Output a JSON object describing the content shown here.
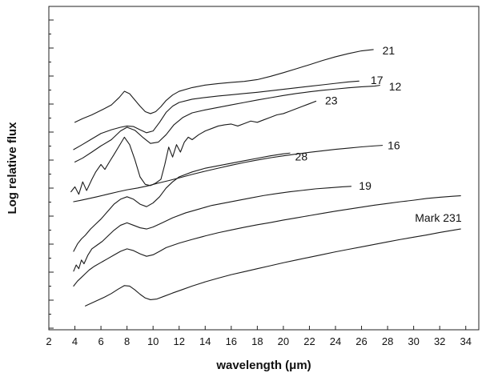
{
  "chart_data": {
    "type": "line",
    "xlabel": "wavelength (μm)",
    "ylabel": "Log relative flux",
    "xlim": [
      2,
      35
    ],
    "ylim": [
      0,
      100
    ],
    "x_ticks": [
      2,
      4,
      6,
      8,
      10,
      12,
      14,
      16,
      18,
      20,
      22,
      24,
      26,
      28,
      30,
      32,
      34
    ],
    "y_ticks_labeled": false,
    "y_scale": "log",
    "grid": false,
    "legend": "none",
    "line_color": "#1a1a1a",
    "series": [
      {
        "name": "21",
        "x": [
          4.0,
          4.6,
          5.3,
          6.0,
          6.8,
          7.4,
          7.8,
          8.2,
          8.6,
          9.0,
          9.4,
          9.8,
          10.2,
          10.6,
          11.0,
          11.5,
          12.0,
          13.0,
          14.0,
          15.0,
          16.0,
          17.0,
          18.0,
          19.0,
          20.0,
          21.0,
          22.0,
          23.0,
          24.0,
          25.0,
          26.0,
          26.9
        ],
        "y": [
          62.0,
          63.5,
          65.0,
          66.8,
          69.0,
          72.0,
          74.5,
          73.5,
          71.0,
          68.5,
          66.3,
          65.5,
          66.3,
          68.3,
          70.8,
          73.0,
          74.5,
          76.0,
          77.0,
          77.6,
          78.1,
          78.5,
          79.2,
          80.5,
          82.0,
          83.6,
          85.2,
          86.9,
          88.4,
          89.7,
          90.8,
          91.3
        ]
      },
      {
        "name": "17",
        "x": [
          3.9,
          4.5,
          5.2,
          6.0,
          6.8,
          7.5,
          8.0,
          8.5,
          9.0,
          9.5,
          10.0,
          10.5,
          11.0,
          11.5,
          12.0,
          13.0,
          14.0,
          15.0,
          16.0,
          17.0,
          18.0,
          19.0,
          20.0,
          21.0,
          22.0,
          23.0,
          24.0,
          25.0,
          25.8
        ],
        "y": [
          51.0,
          52.8,
          55.0,
          57.5,
          59.0,
          60.0,
          60.5,
          60.3,
          59.0,
          57.8,
          58.5,
          62.0,
          66.0,
          68.5,
          70.0,
          71.3,
          72.0,
          72.6,
          73.1,
          73.6,
          74.1,
          74.7,
          75.3,
          75.9,
          76.5,
          77.1,
          77.7,
          78.3,
          78.6
        ]
      },
      {
        "name": "12",
        "x": [
          4.0,
          4.6,
          5.3,
          6.0,
          6.8,
          7.5,
          8.0,
          8.6,
          9.2,
          9.8,
          10.4,
          11.0,
          11.6,
          12.3,
          13.0,
          14.0,
          15.0,
          16.0,
          17.0,
          18.0,
          19.0,
          20.0,
          21.0,
          22.0,
          23.0,
          24.0,
          25.0,
          26.0,
          27.0,
          27.4
        ],
        "y": [
          46.0,
          47.6,
          50.0,
          52.5,
          55.0,
          58.5,
          60.0,
          58.8,
          56.0,
          53.5,
          54.0,
          57.0,
          61.0,
          64.0,
          65.8,
          67.0,
          68.0,
          69.0,
          70.0,
          71.0,
          71.9,
          72.8,
          73.6,
          74.3,
          74.9,
          75.4,
          75.9,
          76.3,
          76.6,
          76.9
        ]
      },
      {
        "name": "23",
        "x": [
          3.7,
          4.0,
          4.3,
          4.6,
          4.9,
          5.3,
          5.6,
          6.0,
          6.3,
          6.7,
          7.0,
          7.4,
          7.8,
          8.2,
          8.6,
          9.0,
          9.4,
          9.8,
          10.2,
          10.6,
          10.9,
          11.2,
          11.5,
          11.8,
          12.1,
          12.4,
          12.7,
          13.0,
          13.5,
          14.0,
          14.5,
          15.0,
          15.5,
          16.0,
          16.5,
          17.0,
          17.5,
          18.0,
          18.5,
          19.0,
          19.5,
          20.0,
          20.5,
          21.0,
          21.5,
          22.0,
          22.5
        ],
        "y": [
          34.0,
          36.0,
          33.0,
          38.0,
          34.5,
          39.0,
          42.0,
          45.0,
          43.0,
          46.5,
          49.0,
          52.5,
          56.0,
          53.0,
          47.0,
          40.0,
          37.0,
          36.5,
          37.5,
          39.0,
          45.0,
          52.0,
          48.0,
          53.0,
          50.0,
          54.0,
          56.0,
          55.0,
          57.0,
          58.5,
          59.5,
          60.5,
          61.0,
          61.3,
          60.5,
          61.5,
          62.5,
          62.0,
          63.0,
          64.0,
          65.0,
          65.5,
          66.5,
          67.5,
          68.5,
          69.5,
          70.5
        ]
      },
      {
        "name": "16",
        "x": [
          3.9,
          4.4,
          5.0,
          5.7,
          6.5,
          7.3,
          8.0,
          8.8,
          9.6,
          10.4,
          11.2,
          12.0,
          13.0,
          14.0,
          15.0,
          16.0,
          17.0,
          18.0,
          19.0,
          20.0,
          21.0,
          22.0,
          23.0,
          24.0,
          25.0,
          26.0,
          27.0,
          27.6
        ],
        "y": [
          30.0,
          30.5,
          31.2,
          32.0,
          33.0,
          34.0,
          34.8,
          35.5,
          36.4,
          37.5,
          38.5,
          39.6,
          41.0,
          42.3,
          43.5,
          44.7,
          45.8,
          46.8,
          47.7,
          48.5,
          49.2,
          49.9,
          50.5,
          51.1,
          51.6,
          52.1,
          52.5,
          52.7
        ]
      },
      {
        "name": "28",
        "x": [
          3.9,
          4.2,
          4.5,
          4.8,
          5.2,
          5.6,
          6.0,
          6.5,
          7.0,
          7.5,
          8.0,
          8.5,
          9.0,
          9.5,
          10.0,
          10.5,
          11.0,
          11.5,
          12.0,
          13.0,
          14.0,
          15.0,
          16.0,
          17.0,
          18.0,
          19.0,
          20.0,
          20.5
        ],
        "y": [
          10.0,
          13.0,
          15.0,
          16.5,
          19.0,
          21.0,
          23.0,
          26.0,
          29.0,
          31.0,
          32.0,
          31.0,
          29.0,
          28.0,
          29.5,
          32.0,
          35.5,
          38.0,
          40.0,
          42.0,
          43.5,
          44.5,
          45.5,
          46.5,
          47.5,
          48.5,
          49.3,
          49.6
        ]
      },
      {
        "name": "19",
        "x": [
          3.9,
          4.1,
          4.3,
          4.5,
          4.7,
          5.0,
          5.3,
          5.7,
          6.1,
          6.5,
          7.0,
          7.5,
          8.0,
          8.5,
          9.0,
          9.5,
          10.0,
          10.7,
          11.5,
          12.5,
          13.5,
          14.5,
          15.5,
          16.5,
          17.5,
          18.5,
          19.5,
          20.5,
          21.5,
          22.5,
          23.5,
          24.5,
          25.2
        ],
        "y": [
          2.0,
          4.5,
          3.0,
          6.5,
          5.0,
          8.5,
          11.0,
          12.5,
          14.0,
          16.0,
          18.5,
          20.5,
          21.5,
          20.5,
          19.5,
          19.0,
          19.8,
          21.5,
          23.5,
          25.5,
          27.0,
          28.5,
          29.5,
          30.5,
          31.5,
          32.5,
          33.3,
          34.0,
          34.6,
          35.2,
          35.6,
          36.0,
          36.2
        ]
      },
      {
        "name": "Mark 231",
        "x": [
          3.9,
          4.2,
          4.5,
          4.8,
          5.1,
          5.5,
          6.0,
          6.5,
          7.0,
          7.5,
          8.0,
          8.5,
          9.0,
          9.5,
          10.0,
          10.5,
          11.0,
          12.0,
          13.0,
          14.0,
          15.0,
          16.0,
          17.0,
          18.0,
          19.0,
          20.0,
          21.0,
          22.0,
          23.0,
          24.0,
          25.0,
          26.0,
          27.0,
          28.0,
          29.0,
          30.0,
          31.0,
          32.0,
          33.0,
          33.6
        ],
        "y": [
          -4.0,
          -2.0,
          -0.5,
          1.0,
          2.5,
          4.0,
          5.5,
          7.0,
          8.5,
          10.0,
          11.0,
          10.3,
          9.0,
          8.0,
          8.6,
          10.0,
          11.5,
          13.3,
          14.8,
          16.2,
          17.5,
          18.6,
          19.7,
          20.7,
          21.6,
          22.6,
          23.5,
          24.4,
          25.3,
          26.2,
          27.0,
          27.8,
          28.6,
          29.3,
          30.0,
          30.6,
          31.3,
          31.8,
          32.2,
          32.4
        ]
      },
      {
        "name": "",
        "x": [
          4.8,
          5.3,
          5.8,
          6.3,
          6.8,
          7.3,
          7.8,
          8.2,
          8.6,
          9.0,
          9.4,
          9.8,
          10.3,
          10.9,
          11.5,
          12.2,
          13.0,
          14.0,
          15.0,
          16.0,
          17.0,
          18.0,
          19.0,
          20.0,
          21.0,
          22.0,
          23.0,
          24.0,
          25.0,
          26.0,
          27.0,
          28.0,
          29.0,
          30.0,
          31.0,
          32.0,
          33.0,
          33.6
        ],
        "y": [
          -12.0,
          -10.8,
          -9.6,
          -8.4,
          -7.0,
          -5.3,
          -3.8,
          -4.0,
          -5.5,
          -7.3,
          -8.8,
          -9.5,
          -9.2,
          -8.0,
          -6.8,
          -5.5,
          -4.0,
          -2.3,
          -0.8,
          0.6,
          1.8,
          3.0,
          4.2,
          5.4,
          6.5,
          7.6,
          8.7,
          9.8,
          10.8,
          11.8,
          12.8,
          13.8,
          14.8,
          15.7,
          16.6,
          17.6,
          18.5,
          19.0
        ]
      }
    ],
    "series_labels": [
      {
        "text": "21",
        "x": 27.6,
        "y": 91.0
      },
      {
        "text": "17",
        "x": 26.7,
        "y": 79.0
      },
      {
        "text": "12",
        "x": 28.1,
        "y": 76.5
      },
      {
        "text": "23",
        "x": 23.2,
        "y": 70.8
      },
      {
        "text": "16",
        "x": 28.0,
        "y": 52.7
      },
      {
        "text": "28",
        "x": 20.9,
        "y": 48.3
      },
      {
        "text": "19",
        "x": 25.8,
        "y": 36.5
      },
      {
        "text": "Mark 231",
        "x": 30.1,
        "y": 23.5
      }
    ]
  }
}
